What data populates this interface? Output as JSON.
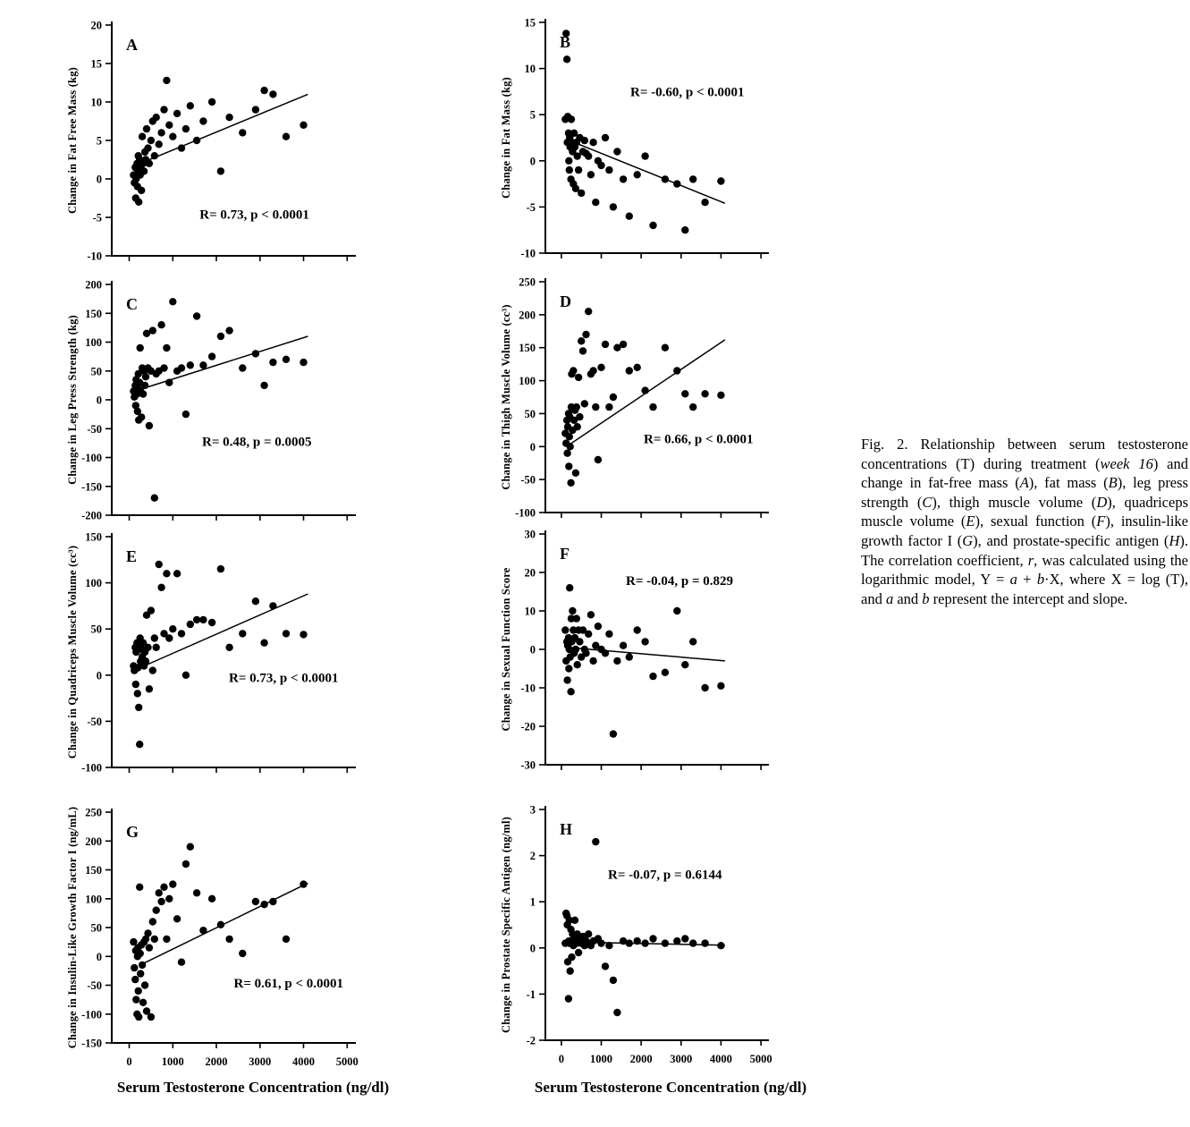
{
  "figure": {
    "x_axis_title": "Serum Testosterone Concentration (ng/dl)",
    "caption": {
      "segments": [
        {
          "text": "Fig. 2. Relationship between serum testosterone concentrations (T) during treatment (",
          "italic": false
        },
        {
          "text": "week 16",
          "italic": true
        },
        {
          "text": ") and change in fat-free mass (",
          "italic": false
        },
        {
          "text": "A",
          "italic": true
        },
        {
          "text": "), fat mass (",
          "italic": false
        },
        {
          "text": "B",
          "italic": true
        },
        {
          "text": "), leg press strength (",
          "italic": false
        },
        {
          "text": "C",
          "italic": true
        },
        {
          "text": "), thigh muscle volume (",
          "italic": false
        },
        {
          "text": "D",
          "italic": true
        },
        {
          "text": "), quadriceps muscle volume (",
          "italic": false
        },
        {
          "text": "E",
          "italic": true
        },
        {
          "text": "), sexual function (",
          "italic": false
        },
        {
          "text": "F",
          "italic": true
        },
        {
          "text": "), insulin-like growth factor I (",
          "italic": false
        },
        {
          "text": "G",
          "italic": true
        },
        {
          "text": "), and prostate-specific antigen (",
          "italic": false
        },
        {
          "text": "H",
          "italic": true
        },
        {
          "text": "). The correlation coefficient, ",
          "italic": false
        },
        {
          "text": "r",
          "italic": true
        },
        {
          "text": ", was calculated using the logarithmic model, Y = ",
          "italic": false
        },
        {
          "text": "a",
          "italic": true
        },
        {
          "text": " + ",
          "italic": false
        },
        {
          "text": "b",
          "italic": true
        },
        {
          "text": "·X, where X = log (T), and ",
          "italic": false
        },
        {
          "text": "a",
          "italic": true
        },
        {
          "text": " and ",
          "italic": false
        },
        {
          "text": "b",
          "italic": true
        },
        {
          "text": " represent the intercept and slope.",
          "italic": false
        }
      ]
    }
  },
  "chart_data": [
    {
      "panel": "A",
      "type": "scatter",
      "ylabel": "Change in Fat Free Mass (kg)",
      "ylim": [
        -10,
        20
      ],
      "yticks": [
        20,
        15,
        10,
        5,
        0,
        -5,
        -10
      ],
      "xlim": [
        0,
        5000
      ],
      "xticks": [
        0,
        1000,
        2000,
        3000,
        4000,
        5000
      ],
      "annotation": "R= 0.73, p < 0.0001",
      "annotation_pos": [
        0.36,
        0.84
      ],
      "trendline": [
        [
          250,
          2.0
        ],
        [
          4100,
          11.0
        ]
      ],
      "x": [
        100,
        120,
        140,
        150,
        160,
        180,
        190,
        200,
        210,
        220,
        240,
        250,
        260,
        280,
        300,
        320,
        340,
        360,
        380,
        400,
        430,
        460,
        500,
        540,
        580,
        620,
        680,
        740,
        800,
        860,
        920,
        1000,
        1100,
        1200,
        1300,
        1400,
        1550,
        1700,
        1900,
        2100,
        2300,
        2600,
        2900,
        3100,
        3300,
        3600,
        4000
      ],
      "y": [
        0.5,
        -0.5,
        1.5,
        -2.5,
        0,
        2,
        -1,
        1,
        3,
        -3,
        2.5,
        0.5,
        1.5,
        -1.5,
        5.5,
        2,
        1,
        3.5,
        2.5,
        6.5,
        4,
        2,
        5,
        7.5,
        3,
        8,
        4.5,
        6,
        9,
        12.8,
        7,
        5.5,
        8.5,
        4,
        6.5,
        9.5,
        5,
        7.5,
        10,
        1,
        8,
        6,
        9,
        11.5,
        11,
        5.5,
        7
      ]
    },
    {
      "panel": "B",
      "type": "scatter",
      "ylabel": "Change in Fat Mass (kg)",
      "ylim": [
        -10,
        15
      ],
      "yticks": [
        15,
        10,
        5,
        0,
        -5,
        -10
      ],
      "xlim": [
        0,
        5000
      ],
      "xticks": [
        0,
        1000,
        2000,
        3000,
        4000,
        5000
      ],
      "annotation": "R= -0.60,  p < 0.0001",
      "annotation_pos": [
        0.38,
        0.32
      ],
      "trendline": [
        [
          150,
          2.3
        ],
        [
          4100,
          -4.6
        ]
      ],
      "x": [
        100,
        120,
        140,
        150,
        160,
        180,
        190,
        200,
        210,
        220,
        240,
        250,
        260,
        280,
        300,
        320,
        340,
        360,
        380,
        400,
        430,
        460,
        500,
        540,
        580,
        620,
        680,
        740,
        800,
        860,
        920,
        1000,
        1100,
        1200,
        1300,
        1400,
        1550,
        1700,
        1900,
        2100,
        2300,
        2600,
        2900,
        3100,
        3300,
        3600,
        4000
      ],
      "y": [
        4.5,
        13.8,
        11,
        2,
        4.8,
        3,
        0,
        -1,
        2.5,
        1.5,
        -2,
        4.5,
        2,
        1,
        -2.5,
        3,
        1.5,
        -3,
        2,
        0.5,
        -1,
        2.5,
        -3.5,
        1,
        2.2,
        0.8,
        0.5,
        -1.5,
        2,
        -4.5,
        0,
        -0.5,
        2.5,
        -1,
        -5,
        1,
        -2,
        -6,
        -1.5,
        0.5,
        -7,
        -2,
        -2.5,
        -7.5,
        -2,
        -4.5,
        -2.2
      ]
    },
    {
      "panel": "C",
      "type": "scatter",
      "ylabel": "Change in Leg Press Strength (kg)",
      "ylim": [
        -200,
        200
      ],
      "yticks": [
        200,
        150,
        100,
        50,
        0,
        -50,
        -100,
        -150,
        -200
      ],
      "xlim": [
        0,
        5000
      ],
      "xticks": [
        0,
        1000,
        2000,
        3000,
        4000,
        5000
      ],
      "annotation": "R= 0.48, p = 0.0005",
      "annotation_pos": [
        0.37,
        0.7
      ],
      "trendline": [
        [
          250,
          18
        ],
        [
          4100,
          110
        ]
      ],
      "x": [
        100,
        120,
        140,
        150,
        160,
        180,
        190,
        200,
        210,
        220,
        240,
        250,
        260,
        280,
        300,
        320,
        340,
        360,
        380,
        400,
        430,
        460,
        500,
        540,
        580,
        620,
        680,
        740,
        800,
        860,
        920,
        1000,
        1100,
        1200,
        1300,
        1400,
        1550,
        1700,
        1900,
        2100,
        2300,
        2600,
        2900,
        3100,
        3300,
        3600,
        4000
      ],
      "y": [
        15,
        5,
        25,
        -10,
        35,
        10,
        -20,
        20,
        45,
        -35,
        30,
        90,
        15,
        -30,
        55,
        10,
        50,
        25,
        40,
        115,
        55,
        -45,
        50,
        120,
        -170,
        45,
        50,
        130,
        55,
        90,
        30,
        170,
        50,
        55,
        -25,
        60,
        145,
        60,
        75,
        110,
        120,
        55,
        80,
        25,
        65,
        70,
        65
      ]
    },
    {
      "panel": "D",
      "type": "scatter",
      "ylabel": "Change in Thigh Muscle Volume (cc³)",
      "ylim": [
        -100,
        250
      ],
      "yticks": [
        250,
        200,
        150,
        100,
        50,
        0,
        -50,
        -100
      ],
      "xlim": [
        0,
        5000
      ],
      "xticks": [
        0,
        1000,
        2000,
        3000,
        4000,
        5000
      ],
      "annotation": "R= 0.66, p < 0.0001",
      "annotation_pos": [
        0.44,
        0.7
      ],
      "trendline": [
        [
          250,
          5
        ],
        [
          4100,
          162
        ]
      ],
      "x": [
        100,
        120,
        140,
        150,
        160,
        180,
        190,
        200,
        210,
        220,
        240,
        250,
        260,
        280,
        300,
        320,
        340,
        360,
        380,
        400,
        430,
        460,
        500,
        540,
        580,
        620,
        680,
        740,
        800,
        860,
        920,
        1000,
        1100,
        1200,
        1300,
        1400,
        1550,
        1700,
        1900,
        2100,
        2300,
        2600,
        2900,
        3100,
        3300,
        3600,
        4000
      ],
      "y": [
        20,
        5,
        40,
        -10,
        30,
        50,
        -30,
        15,
        45,
        0,
        -55,
        60,
        110,
        25,
        115,
        40,
        55,
        -40,
        60,
        30,
        105,
        45,
        160,
        145,
        65,
        170,
        205,
        110,
        115,
        60,
        -20,
        120,
        155,
        60,
        75,
        150,
        155,
        115,
        120,
        85,
        60,
        150,
        115,
        80,
        60,
        80,
        78
      ]
    },
    {
      "panel": "E",
      "type": "scatter",
      "ylabel": "Change in Quadriceps Muscle Volume (cc³)",
      "ylim": [
        -100,
        150
      ],
      "yticks": [
        150,
        100,
        50,
        0,
        -50,
        -100
      ],
      "xlim": [
        0,
        5000
      ],
      "xticks": [
        0,
        1000,
        2000,
        3000,
        4000,
        5000
      ],
      "annotation": "R= 0.73, p < 0.0001",
      "annotation_pos": [
        0.48,
        0.63
      ],
      "trendline": [
        [
          250,
          8
        ],
        [
          4100,
          88
        ]
      ],
      "x": [
        100,
        120,
        140,
        150,
        160,
        180,
        190,
        200,
        210,
        220,
        240,
        250,
        260,
        280,
        300,
        320,
        340,
        360,
        380,
        400,
        430,
        460,
        500,
        540,
        580,
        620,
        680,
        740,
        800,
        860,
        920,
        1000,
        1100,
        1200,
        1300,
        1400,
        1550,
        1700,
        1900,
        2100,
        2300,
        2600,
        2900,
        3100,
        3300,
        3600,
        4000
      ],
      "y": [
        10,
        5,
        30,
        -10,
        25,
        35,
        -20,
        8,
        30,
        -35,
        -75,
        40,
        15,
        28,
        20,
        35,
        10,
        25,
        15,
        65,
        30,
        -15,
        70,
        5,
        40,
        30,
        120,
        95,
        45,
        110,
        40,
        50,
        110,
        45,
        0,
        55,
        60,
        60,
        57,
        115,
        30,
        45,
        80,
        35,
        75,
        45,
        44
      ]
    },
    {
      "panel": "F",
      "type": "scatter",
      "ylabel": "Change in Sexual Function Score",
      "ylim": [
        -30,
        30
      ],
      "yticks": [
        30,
        20,
        10,
        0,
        -10,
        -20,
        -30
      ],
      "xlim": [
        0,
        5000
      ],
      "xticks": [
        0,
        1000,
        2000,
        3000,
        4000,
        5000
      ],
      "annotation": "R= -0.04, p = 0.829",
      "annotation_pos": [
        0.36,
        0.22
      ],
      "trendline": [
        [
          150,
          0.5
        ],
        [
          4100,
          -3
        ]
      ],
      "x": [
        100,
        120,
        140,
        150,
        160,
        180,
        190,
        200,
        210,
        220,
        240,
        250,
        260,
        280,
        300,
        320,
        340,
        360,
        380,
        400,
        430,
        460,
        500,
        540,
        580,
        620,
        680,
        740,
        800,
        860,
        920,
        1000,
        1100,
        1200,
        1300,
        1400,
        1550,
        1700,
        1900,
        2100,
        2300,
        2600,
        2900,
        3100,
        3300,
        3600,
        4000
      ],
      "y": [
        5,
        -3,
        2,
        -8,
        1,
        3,
        -5,
        0,
        16,
        -2,
        -11,
        8,
        2,
        10,
        5,
        -1,
        3,
        0,
        8,
        -4,
        5,
        2,
        -2,
        5,
        0,
        -1,
        4,
        9,
        -3,
        1,
        6,
        0,
        -1,
        4,
        -22,
        -3,
        1,
        -2,
        5,
        2,
        -7,
        -6,
        10,
        -4,
        2,
        -10,
        -9.5
      ]
    },
    {
      "panel": "G",
      "type": "scatter",
      "ylabel": "Change in Insulin-Like Growth Factor I (ng/mL)",
      "ylim": [
        -150,
        250
      ],
      "yticks": [
        250,
        200,
        150,
        100,
        50,
        0,
        -50,
        -100,
        -150
      ],
      "xlim": [
        0,
        5000
      ],
      "xticks": [
        0,
        1000,
        2000,
        3000,
        4000,
        5000
      ],
      "annotation": "R= 0.61, p < 0.0001",
      "annotation_pos": [
        0.5,
        0.76
      ],
      "trendline": [
        [
          250,
          -15
        ],
        [
          4100,
          127
        ]
      ],
      "x": [
        100,
        120,
        140,
        150,
        160,
        180,
        190,
        200,
        210,
        220,
        240,
        250,
        260,
        280,
        300,
        320,
        340,
        360,
        380,
        400,
        430,
        460,
        500,
        540,
        580,
        620,
        680,
        740,
        800,
        860,
        920,
        1000,
        1100,
        1200,
        1300,
        1400,
        1550,
        1700,
        1900,
        2100,
        2300,
        2600,
        2900,
        3100,
        3300,
        3600,
        4000
      ],
      "y": [
        25,
        -20,
        -40,
        10,
        -75,
        -100,
        0,
        15,
        -60,
        -105,
        120,
        5,
        -30,
        20,
        -15,
        -80,
        25,
        -50,
        30,
        -95,
        40,
        15,
        -105,
        60,
        30,
        80,
        110,
        95,
        120,
        30,
        100,
        125,
        65,
        -10,
        160,
        190,
        110,
        45,
        100,
        55,
        30,
        5,
        95,
        90,
        95,
        30,
        125
      ]
    },
    {
      "panel": "H",
      "type": "scatter",
      "ylabel": "Change in Prostate Specific Antigen (ng/ml)",
      "ylim": [
        -2,
        3
      ],
      "yticks": [
        3,
        2,
        1,
        0,
        -1,
        -2
      ],
      "xlim": [
        0,
        5000
      ],
      "xticks": [
        0,
        1000,
        2000,
        3000,
        4000,
        5000
      ],
      "annotation": "R= -0.07, p = 0.6144",
      "annotation_pos": [
        0.28,
        0.3
      ],
      "trendline": [
        [
          100,
          0.13
        ],
        [
          4100,
          0.06
        ]
      ],
      "x": [
        100,
        120,
        140,
        150,
        160,
        180,
        190,
        200,
        210,
        220,
        240,
        250,
        260,
        280,
        300,
        320,
        340,
        360,
        380,
        400,
        430,
        460,
        500,
        540,
        580,
        620,
        680,
        740,
        800,
        860,
        920,
        1000,
        1100,
        1200,
        1300,
        1400,
        1550,
        1700,
        1900,
        2100,
        2300,
        2600,
        2900,
        3100,
        3300,
        3600,
        4000
      ],
      "y": [
        0.1,
        0.75,
        0.7,
        0.5,
        -0.3,
        -1.1,
        0.15,
        0.6,
        0.1,
        -0.5,
        0.4,
        0.1,
        -0.2,
        0.3,
        0.05,
        0.2,
        0.6,
        0.15,
        0.1,
        0.3,
        -0.1,
        0.2,
        0.1,
        0.25,
        0.05,
        0.15,
        0.3,
        0.05,
        0.15,
        2.3,
        0.2,
        0.1,
        -0.4,
        0.05,
        -0.7,
        -1.4,
        0.15,
        0.1,
        0.15,
        0.1,
        0.2,
        0.1,
        0.15,
        0.2,
        0.1,
        0.1,
        0.05
      ]
    }
  ]
}
